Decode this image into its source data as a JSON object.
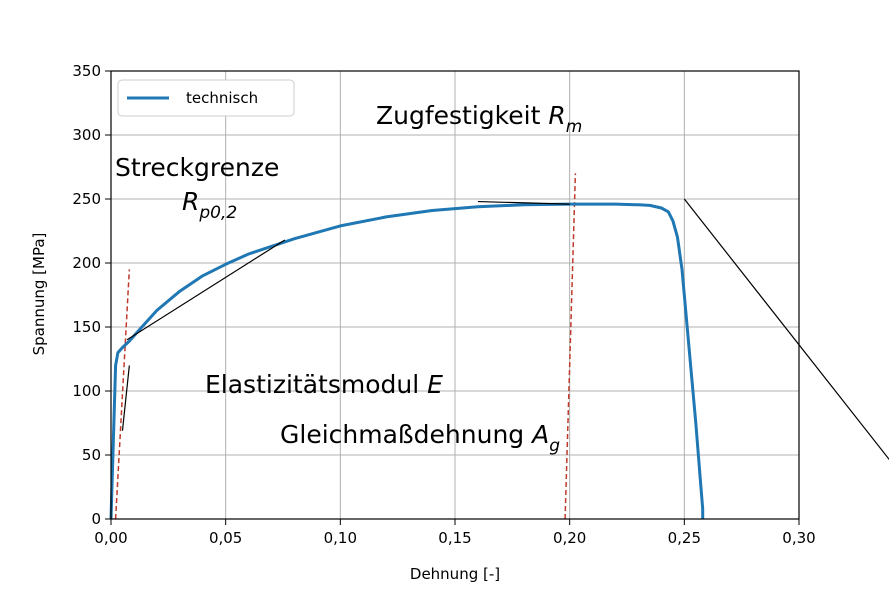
{
  "chart_data": {
    "type": "line",
    "title": "",
    "xlabel": "Dehnung [-]",
    "ylabel": "Spannung [MPa]",
    "xlim": [
      0,
      0.3
    ],
    "ylim": [
      0,
      350
    ],
    "x_ticks": [
      0,
      0.05,
      0.1,
      0.15,
      0.2,
      0.25,
      0.3
    ],
    "x_tick_labels": [
      "0,00",
      "0,05",
      "0,10",
      "0,15",
      "0,20",
      "0,25",
      "0,30"
    ],
    "y_ticks": [
      0,
      50,
      100,
      150,
      200,
      250,
      300,
      350
    ],
    "y_tick_labels": [
      "0",
      "50",
      "100",
      "150",
      "200",
      "250",
      "300",
      "350"
    ],
    "grid": true,
    "legend_position": "top-left",
    "series": [
      {
        "name": "technisch",
        "color": "#1f77b4",
        "x": [
          0,
          0.001,
          0.002,
          0.003,
          0.005,
          0.008,
          0.012,
          0.02,
          0.03,
          0.04,
          0.05,
          0.06,
          0.08,
          0.1,
          0.12,
          0.14,
          0.16,
          0.18,
          0.2,
          0.22,
          0.23,
          0.235,
          0.24,
          0.243,
          0.245,
          0.247,
          0.249,
          0.251,
          0.253,
          0.255,
          0.257,
          0.258,
          0.258
        ],
        "y": [
          0,
          60,
          120,
          130,
          134,
          139,
          147,
          163,
          178,
          190,
          199,
          207,
          219,
          229,
          236,
          241,
          244,
          245.5,
          246,
          246,
          245.5,
          245,
          243,
          240,
          233,
          220,
          195,
          155,
          115,
          75,
          30,
          8,
          0
        ]
      }
    ],
    "reference_lines": [
      {
        "name": "Elastizitätsmodul line",
        "color": "#c0392b",
        "style": "dashed",
        "x": [
          0.002,
          0.008
        ],
        "y": [
          0,
          195
        ]
      },
      {
        "name": "Zugfestigkeit line",
        "color": "#c0392b",
        "style": "dashed",
        "x": [
          0.198,
          0.2025
        ],
        "y": [
          0,
          270
        ]
      }
    ],
    "annotations": [
      {
        "key": "streckgrenze_line1",
        "text": "Streckgrenze",
        "sub": ""
      },
      {
        "key": "streckgrenze_line2",
        "text": "R",
        "sub": "p0,2",
        "italic": true
      },
      {
        "key": "zugfestigkeit",
        "text": "Zugfestigkeit ",
        "var": "R",
        "sub": "m"
      },
      {
        "key": "emodul",
        "text": "Elastizitätsmodul ",
        "var": "E",
        "sub": ""
      },
      {
        "key": "gleichmass",
        "text": "Gleichmaßdehnung ",
        "var": "A",
        "sub": "g"
      }
    ],
    "annotation_pointers": [
      {
        "from": [
          0.0758,
          218
        ],
        "to": [
          0.007,
          140
        ]
      },
      {
        "from": [
          0.16,
          248
        ],
        "to": [
          0.2,
          246
        ]
      },
      {
        "from": [
          0.008,
          120
        ],
        "to": [
          0.005,
          69
        ]
      },
      {
        "from": [
          0.25,
          250
        ],
        "to": [
          0.34,
          45
        ]
      }
    ]
  }
}
